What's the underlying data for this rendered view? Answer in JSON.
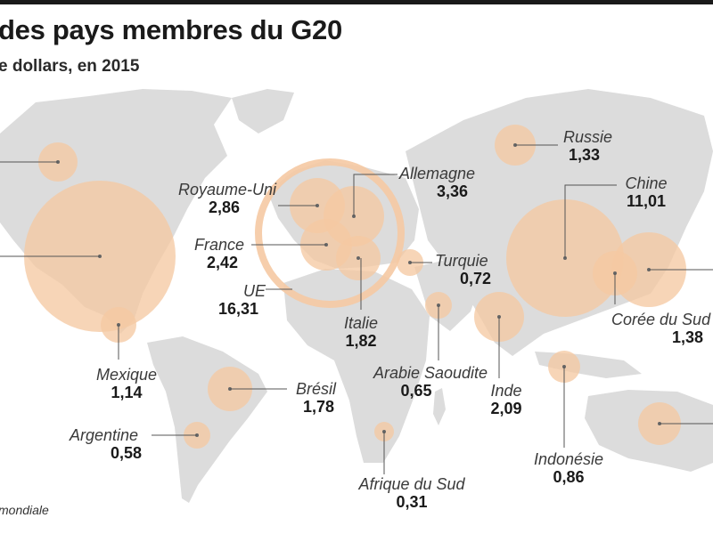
{
  "title": "des pays membres du G20",
  "subtitle": "e dollars, en 2015",
  "source": "mondiale",
  "colors": {
    "bubble": "#f5c9a3",
    "land": "#dcdcdc",
    "line": "#555555"
  },
  "countries": [
    {
      "id": "usa",
      "name": "",
      "value": ""
    },
    {
      "id": "canada",
      "name": "",
      "value": ""
    },
    {
      "id": "mexique",
      "name": "Mexique",
      "value": "1,14"
    },
    {
      "id": "bresil",
      "name": "Brésil",
      "value": "1,78"
    },
    {
      "id": "argentine",
      "name": "Argentine",
      "value": "0,58"
    },
    {
      "id": "royaume-uni",
      "name": "Royaume-Uni",
      "value": "2,86"
    },
    {
      "id": "france",
      "name": "France",
      "value": "2,42"
    },
    {
      "id": "ue",
      "name": "UE",
      "value": "16,31"
    },
    {
      "id": "allemagne",
      "name": "Allemagne",
      "value": "3,36"
    },
    {
      "id": "italie",
      "name": "Italie",
      "value": "1,82"
    },
    {
      "id": "turquie",
      "name": "Turquie",
      "value": "0,72"
    },
    {
      "id": "arabie-saoudite",
      "name": "Arabie Saoudite",
      "value": "0,65"
    },
    {
      "id": "afrique-du-sud",
      "name": "Afrique du Sud",
      "value": "0,31"
    },
    {
      "id": "russie",
      "name": "Russie",
      "value": "1,33"
    },
    {
      "id": "chine",
      "name": "Chine",
      "value": "11,01"
    },
    {
      "id": "inde",
      "name": "Inde",
      "value": "2,09"
    },
    {
      "id": "coree-du-sud",
      "name": "Corée du Sud",
      "value": "1,38"
    },
    {
      "id": "indonesie",
      "name": "Indonésie",
      "value": "0,86"
    },
    {
      "id": "japon",
      "name": "",
      "value": ""
    },
    {
      "id": "australie",
      "name": "",
      "value": ""
    }
  ]
}
